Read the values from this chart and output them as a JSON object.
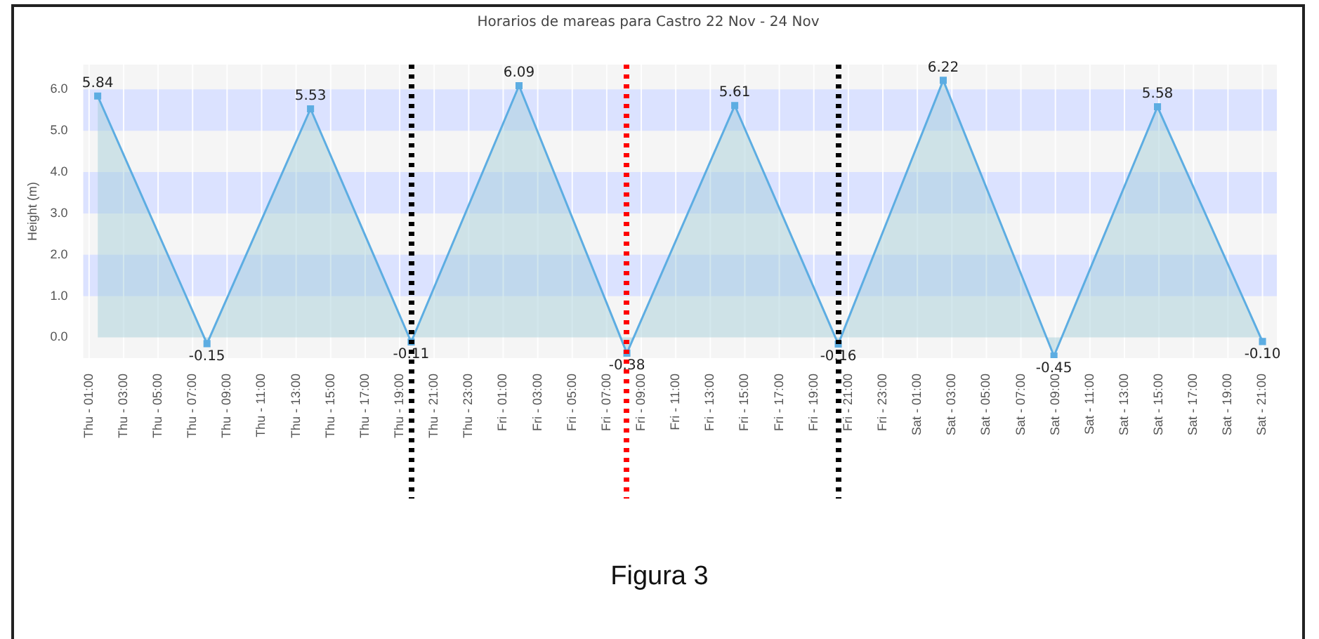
{
  "chart_data": {
    "type": "area",
    "title": "Horarios de mareas para Castro 22 Nov - 24 Nov",
    "ylabel": "Height (m)",
    "x": [
      "--11-22T01:30",
      "--11-22T07:50",
      "--11-22T13:50",
      "--11-22T19:40",
      "--11-23T01:55",
      "--11-23T08:10",
      "--11-23T14:25",
      "--11-23T20:25",
      "--11-24T02:30",
      "--11-24T08:55",
      "--11-24T14:55",
      "--11-24T21:00"
    ],
    "series": [
      {
        "color": "#5dade2",
        "values": [
          5.84,
          -0.15,
          5.53,
          -0.11,
          6.09,
          -0.38,
          5.61,
          -0.16,
          6.22,
          -0.45,
          5.58,
          -0.1
        ],
        "value_labels": [
          "5.84",
          "-0.15",
          "5.53",
          "-0.11",
          "6.09",
          "-0.38",
          "5.61",
          "-0.16",
          "6.22",
          "-0.45",
          "5.58",
          "-0.10"
        ]
      }
    ],
    "marker": "square",
    "grid": "x",
    "bands": [
      {
        "axis": "y",
        "from": 1,
        "to": 2,
        "color": "#dbe2ff"
      },
      {
        "axis": "y",
        "from": 3,
        "to": 4,
        "color": "#dbe2ff"
      },
      {
        "axis": "y",
        "from": 5,
        "to": 6,
        "color": "#dbe2ff"
      }
    ],
    "xlim": [
      "--11-22T00:40",
      "--11-24T21:50"
    ],
    "ylim": [
      -0.5,
      6.6
    ],
    "yticks": [
      {
        "value": 0,
        "label": "0.0"
      },
      {
        "value": 1,
        "label": "1.0"
      },
      {
        "value": 2,
        "label": "2.0"
      },
      {
        "value": 3,
        "label": "3.0"
      },
      {
        "value": 4,
        "label": "4.0"
      },
      {
        "value": 5,
        "label": "5.0"
      },
      {
        "value": 6,
        "label": "6.0"
      }
    ],
    "xticks": [
      {
        "value": "--11-22T01:00",
        "label": "Thu - 01:00"
      },
      {
        "value": "--11-22T03:00",
        "label": "Thu - 03:00"
      },
      {
        "value": "--11-22T05:00",
        "label": "Thu - 05:00"
      },
      {
        "value": "--11-22T07:00",
        "label": "Thu - 07:00"
      },
      {
        "value": "--11-22T09:00",
        "label": "Thu - 09:00"
      },
      {
        "value": "--11-22T11:00",
        "label": "Thu - 11:00"
      },
      {
        "value": "--11-22T13:00",
        "label": "Thu - 13:00"
      },
      {
        "value": "--11-22T15:00",
        "label": "Thu - 15:00"
      },
      {
        "value": "--11-22T17:00",
        "label": "Thu - 17:00"
      },
      {
        "value": "--11-22T19:00",
        "label": "Thu - 19:00"
      },
      {
        "value": "--11-22T21:00",
        "label": "Thu - 21:00"
      },
      {
        "value": "--11-22T23:00",
        "label": "Thu - 23:00"
      },
      {
        "value": "--11-23T01:00",
        "label": "Fri - 01:00"
      },
      {
        "value": "--11-23T03:00",
        "label": "Fri - 03:00"
      },
      {
        "value": "--11-23T05:00",
        "label": "Fri - 05:00"
      },
      {
        "value": "--11-23T07:00",
        "label": "Fri - 07:00"
      },
      {
        "value": "--11-23T09:00",
        "label": "Fri - 09:00"
      },
      {
        "value": "--11-23T11:00",
        "label": "Fri - 11:00"
      },
      {
        "value": "--11-23T13:00",
        "label": "Fri - 13:00"
      },
      {
        "value": "--11-23T15:00",
        "label": "Fri - 15:00"
      },
      {
        "value": "--11-23T17:00",
        "label": "Fri - 17:00"
      },
      {
        "value": "--11-23T19:00",
        "label": "Fri - 19:00"
      },
      {
        "value": "--11-23T21:00",
        "label": "Fri - 21:00"
      },
      {
        "value": "--11-23T23:00",
        "label": "Fri - 23:00"
      },
      {
        "value": "--11-24T01:00",
        "label": "Sat - 01:00"
      },
      {
        "value": "--11-24T03:00",
        "label": "Sat - 03:00"
      },
      {
        "value": "--11-24T05:00",
        "label": "Sat - 05:00"
      },
      {
        "value": "--11-24T07:00",
        "label": "Sat - 07:00"
      },
      {
        "value": "--11-24T09:00",
        "label": "Sat - 09:00"
      },
      {
        "value": "--11-24T11:00",
        "label": "Sat - 11:00"
      },
      {
        "value": "--11-24T13:00",
        "label": "Sat - 13:00"
      },
      {
        "value": "--11-24T15:00",
        "label": "Sat - 15:00"
      },
      {
        "value": "--11-24T17:00",
        "label": "Sat - 17:00"
      },
      {
        "value": "--11-24T19:00",
        "label": "Sat - 19:00"
      },
      {
        "value": "--11-24T21:00",
        "label": "Sat - 21:00"
      }
    ],
    "ref_lines": [
      {
        "axis": "x",
        "value": "--11-22T19:40",
        "color": "#000000",
        "line_style": "dotted"
      },
      {
        "axis": "x",
        "value": "--11-23T08:10",
        "color": "#ff0000",
        "line_style": "dotted"
      },
      {
        "axis": "x",
        "value": "--11-23T20:25",
        "color": "#000000",
        "line_style": "dotted"
      }
    ],
    "annotations": [
      "Figura 3"
    ]
  }
}
